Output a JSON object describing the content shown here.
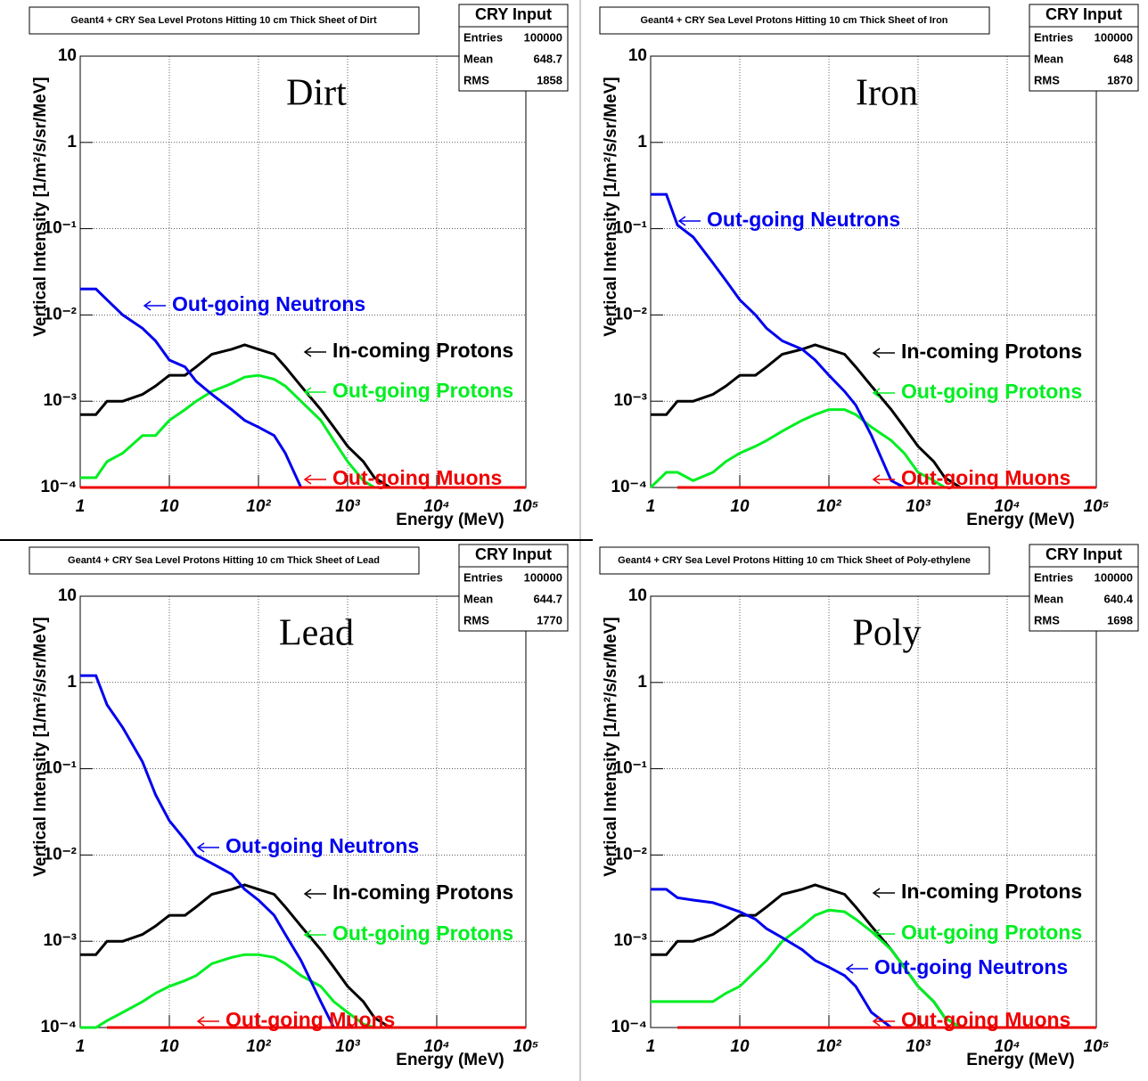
{
  "chart_data": [
    {
      "type": "line",
      "title": "Geant4 + CRY Sea Level Protons Hitting 10 cm Thick Sheet of Dirt",
      "annotation": "Dirt",
      "xlabel": "Energy (MeV)",
      "ylabel": "Vertical Intensity [1/m²/s/sr/MeV]",
      "log_x": true,
      "log_y": true,
      "grid": true,
      "stats": {
        "title": "CRY Input",
        "rows": [
          {
            "label": "Entries",
            "value": 100000
          },
          {
            "label": "Mean",
            "value": 648.7
          },
          {
            "label": "RMS",
            "value": 1858
          }
        ]
      },
      "xlim": [
        1,
        100000
      ],
      "ylim": [
        0.0001,
        10
      ],
      "xticks": [
        1,
        10,
        {
          "value": 100,
          "label": "10²"
        },
        {
          "value": 1000,
          "label": "10³"
        },
        {
          "value": 10000,
          "label": "10⁴"
        },
        {
          "value": 100000,
          "label": "10⁵"
        }
      ],
      "yticks": [
        {
          "value": 0.0001,
          "label": "10⁻⁴"
        },
        {
          "value": 0.001,
          "label": "10⁻³"
        },
        {
          "value": 0.01,
          "label": "10⁻²"
        },
        {
          "value": 0.1,
          "label": "10⁻¹"
        },
        1,
        10
      ],
      "x": [
        1,
        1.5,
        2,
        3,
        5,
        7,
        10,
        15,
        20,
        30,
        50,
        70,
        100,
        150,
        200,
        300,
        500,
        700,
        1000,
        1500,
        2000,
        3000,
        100000
      ],
      "series": [
        {
          "name": "In-coming Protons",
          "color": "#000000",
          "values": [
            0.0007,
            0.0007,
            0.001,
            0.001,
            0.0012,
            0.0015,
            0.002,
            0.002,
            0.0025,
            0.0035,
            0.004,
            0.0045,
            0.004,
            0.0035,
            0.0025,
            0.0015,
            0.0008,
            0.0005,
            0.0003,
            0.0002,
            0.00013,
            0.0001,
            0.0001
          ]
        },
        {
          "name": "Out-going Protons",
          "color": "#00ee22",
          "values": [
            0.00013,
            0.00013,
            0.0002,
            0.00025,
            0.0004,
            0.0004,
            0.0006,
            0.0008,
            0.001,
            0.0013,
            0.0016,
            0.0019,
            0.002,
            0.0018,
            0.0015,
            0.001,
            0.0006,
            0.00035,
            0.0002,
            0.00012,
            0.0001,
            0.0001,
            0.0001
          ]
        },
        {
          "name": "Out-going Neutrons",
          "color": "#0000ee",
          "values": [
            0.02,
            0.02,
            0.015,
            0.01,
            0.007,
            0.005,
            0.003,
            0.0025,
            0.0017,
            0.0012,
            0.0008,
            0.0006,
            0.0005,
            0.0004,
            0.00025,
            0.0001,
            0.0001,
            0.0001,
            0.0001,
            0.0001,
            0.0001,
            0.0001,
            0.0001
          ]
        },
        {
          "name": "Out-going Muons",
          "color": "#ee0000",
          "values": [
            0.0001,
            0.0001,
            0.0001,
            0.0001,
            0.0001,
            0.0001,
            0.0001,
            0.0001,
            0.0001,
            0.0001,
            0.0001,
            0.0001,
            0.0001,
            0.0001,
            0.0001,
            0.0001,
            0.0001,
            0.0001,
            0.0001,
            0.0001,
            0.0001,
            0.0001,
            0.0001
          ]
        }
      ]
    },
    {
      "type": "line",
      "title": "Geant4 + CRY Sea Level Protons Hitting 10 cm Thick Sheet of Iron",
      "annotation": "Iron",
      "xlabel": "Energy (MeV)",
      "ylabel": "Vertical Intensity [1/m²/s/sr/MeV]",
      "log_x": true,
      "log_y": true,
      "grid": true,
      "stats": {
        "title": "CRY Input",
        "rows": [
          {
            "label": "Entries",
            "value": 100000
          },
          {
            "label": "Mean",
            "value": 648
          },
          {
            "label": "RMS",
            "value": 1870
          }
        ]
      },
      "xlim": [
        1,
        100000
      ],
      "ylim": [
        0.0001,
        10
      ],
      "xticks": [
        1,
        10,
        {
          "value": 100,
          "label": "10²"
        },
        {
          "value": 1000,
          "label": "10³"
        },
        {
          "value": 10000,
          "label": "10⁴"
        },
        {
          "value": 100000,
          "label": "10⁵"
        }
      ],
      "yticks": [
        {
          "value": 0.0001,
          "label": "10⁻⁴"
        },
        {
          "value": 0.001,
          "label": "10⁻³"
        },
        {
          "value": 0.01,
          "label": "10⁻²"
        },
        {
          "value": 0.1,
          "label": "10⁻¹"
        },
        1,
        10
      ],
      "x": [
        1,
        1.5,
        2,
        3,
        5,
        7,
        10,
        15,
        20,
        30,
        50,
        70,
        100,
        150,
        200,
        300,
        500,
        700,
        1000,
        1500,
        2000,
        3000,
        100000
      ],
      "series": [
        {
          "name": "In-coming Protons",
          "color": "#000000",
          "values": [
            0.0007,
            0.0007,
            0.001,
            0.001,
            0.0012,
            0.0015,
            0.002,
            0.002,
            0.0025,
            0.0035,
            0.004,
            0.0045,
            0.004,
            0.0035,
            0.0025,
            0.0015,
            0.0008,
            0.0005,
            0.0003,
            0.0002,
            0.00013,
            0.0001,
            0.0001
          ]
        },
        {
          "name": "Out-going Protons",
          "color": "#00ee22",
          "values": [
            0.0001,
            0.00015,
            0.00015,
            0.00012,
            0.00015,
            0.0002,
            0.00025,
            0.0003,
            0.00035,
            0.00045,
            0.0006,
            0.0007,
            0.0008,
            0.0008,
            0.0007,
            0.0005,
            0.00035,
            0.00025,
            0.00015,
            0.00012,
            0.0001,
            0.0001,
            0.0001
          ]
        },
        {
          "name": "Out-going Neutrons",
          "color": "#0000ee",
          "values": [
            0.25,
            0.25,
            0.11,
            0.08,
            0.04,
            0.025,
            0.015,
            0.01,
            0.007,
            0.005,
            0.004,
            0.003,
            0.002,
            0.0013,
            0.0009,
            0.0004,
            0.00012,
            0.0001,
            0.0001,
            0.0001,
            0.0001,
            0.0001,
            0.0001
          ]
        },
        {
          "name": "Out-going Muons",
          "color": "#ee0000",
          "values": [
            null,
            null,
            0.0001,
            0.0001,
            0.0001,
            0.0001,
            0.0001,
            0.0001,
            0.0001,
            0.0001,
            0.0001,
            0.0001,
            0.0001,
            0.0001,
            0.0001,
            0.0001,
            0.0001,
            0.0001,
            0.0001,
            0.0001,
            0.0001,
            0.0001,
            0.0001
          ]
        }
      ]
    },
    {
      "type": "line",
      "title": "Geant4 + CRY Sea Level Protons Hitting 10 cm Thick Sheet of Lead",
      "annotation": "Lead",
      "xlabel": "Energy (MeV)",
      "ylabel": "Vertical Intensity [1/m²/s/sr/MeV]",
      "log_x": true,
      "log_y": true,
      "grid": true,
      "stats": {
        "title": "CRY Input",
        "rows": [
          {
            "label": "Entries",
            "value": 100000
          },
          {
            "label": "Mean",
            "value": 644.7
          },
          {
            "label": "RMS",
            "value": 1770
          }
        ]
      },
      "xlim": [
        1,
        100000
      ],
      "ylim": [
        0.0001,
        10
      ],
      "xticks": [
        1,
        10,
        {
          "value": 100,
          "label": "10²"
        },
        {
          "value": 1000,
          "label": "10³"
        },
        {
          "value": 10000,
          "label": "10⁴"
        },
        {
          "value": 100000,
          "label": "10⁵"
        }
      ],
      "yticks": [
        {
          "value": 0.0001,
          "label": "10⁻⁴"
        },
        {
          "value": 0.001,
          "label": "10⁻³"
        },
        {
          "value": 0.01,
          "label": "10⁻²"
        },
        {
          "value": 0.1,
          "label": "10⁻¹"
        },
        1,
        10
      ],
      "x": [
        1,
        1.5,
        2,
        3,
        5,
        7,
        10,
        15,
        20,
        30,
        50,
        70,
        100,
        150,
        200,
        300,
        500,
        700,
        1000,
        1500,
        2000,
        3000,
        100000
      ],
      "series": [
        {
          "name": "In-coming Protons",
          "color": "#000000",
          "values": [
            0.0007,
            0.0007,
            0.001,
            0.001,
            0.0012,
            0.0015,
            0.002,
            0.002,
            0.0025,
            0.0035,
            0.004,
            0.0045,
            0.004,
            0.0035,
            0.0025,
            0.0015,
            0.0008,
            0.0005,
            0.0003,
            0.0002,
            0.00013,
            0.0001,
            0.0001
          ]
        },
        {
          "name": "Out-going Protons",
          "color": "#00ee22",
          "values": [
            0.0001,
            0.0001,
            0.00012,
            0.00015,
            0.0002,
            0.00025,
            0.0003,
            0.00035,
            0.0004,
            0.00055,
            0.00065,
            0.0007,
            0.0007,
            0.00065,
            0.00055,
            0.0004,
            0.0003,
            0.0002,
            0.00015,
            0.00011,
            0.0001,
            0.0001,
            0.0001
          ]
        },
        {
          "name": "Out-going Neutrons",
          "color": "#0000ee",
          "values": [
            1.2,
            1.2,
            0.55,
            0.3,
            0.12,
            0.05,
            0.025,
            0.015,
            0.01,
            0.008,
            0.006,
            0.004,
            0.003,
            0.002,
            0.0012,
            0.0006,
            0.0002,
            0.0001,
            0.0001,
            0.0001,
            0.0001,
            0.0001,
            0.0001
          ]
        },
        {
          "name": "Out-going Muons",
          "color": "#ee0000",
          "values": [
            null,
            null,
            0.0001,
            0.0001,
            0.0001,
            0.0001,
            0.0001,
            0.0001,
            0.0001,
            0.0001,
            0.0001,
            0.0001,
            0.0001,
            0.0001,
            0.0001,
            0.0001,
            0.0001,
            0.0001,
            0.0001,
            0.0001,
            0.0001,
            0.0001,
            0.0001
          ]
        }
      ]
    },
    {
      "type": "line",
      "title": "Geant4 + CRY Sea Level Protons Hitting 10 cm Thick Sheet of Poly-ethylene",
      "annotation": "Poly",
      "xlabel": "Energy (MeV)",
      "ylabel": "Vertical Intensity [1/m²/s/sr/MeV]",
      "log_x": true,
      "log_y": true,
      "grid": true,
      "stats": {
        "title": "CRY Input",
        "rows": [
          {
            "label": "Entries",
            "value": 100000
          },
          {
            "label": "Mean",
            "value": 640.4
          },
          {
            "label": "RMS",
            "value": 1698
          }
        ]
      },
      "xlim": [
        1,
        100000
      ],
      "ylim": [
        0.0001,
        10
      ],
      "xticks": [
        1,
        10,
        {
          "value": 100,
          "label": "10²"
        },
        {
          "value": 1000,
          "label": "10³"
        },
        {
          "value": 10000,
          "label": "10⁴"
        },
        {
          "value": 100000,
          "label": "10⁵"
        }
      ],
      "yticks": [
        {
          "value": 0.0001,
          "label": "10⁻⁴"
        },
        {
          "value": 0.001,
          "label": "10⁻³"
        },
        {
          "value": 0.01,
          "label": "10⁻²"
        },
        {
          "value": 0.1,
          "label": "10⁻¹"
        },
        1,
        10
      ],
      "x": [
        1,
        1.5,
        2,
        3,
        5,
        7,
        10,
        15,
        20,
        30,
        50,
        70,
        100,
        150,
        200,
        300,
        500,
        700,
        1000,
        1500,
        2000,
        3000,
        100000
      ],
      "series": [
        {
          "name": "In-coming Protons",
          "color": "#000000",
          "values": [
            0.0007,
            0.0007,
            0.001,
            0.001,
            0.0012,
            0.0015,
            0.002,
            0.002,
            0.0025,
            0.0035,
            0.004,
            0.0045,
            0.004,
            0.0035,
            0.0025,
            0.0015,
            0.0008,
            0.0005,
            0.0003,
            0.0002,
            0.00013,
            0.0001,
            0.0001
          ]
        },
        {
          "name": "Out-going Protons",
          "color": "#00ee22",
          "values": [
            0.0002,
            0.0002,
            0.0002,
            0.0002,
            0.0002,
            0.00025,
            0.0003,
            0.00045,
            0.0006,
            0.001,
            0.0015,
            0.002,
            0.0023,
            0.0022,
            0.0018,
            0.0013,
            0.0008,
            0.0005,
            0.0003,
            0.0002,
            0.00013,
            0.0001,
            0.0001
          ]
        },
        {
          "name": "Out-going Neutrons",
          "color": "#0000ee",
          "values": [
            0.004,
            0.004,
            0.0032,
            0.003,
            0.0028,
            0.0025,
            0.0022,
            0.0018,
            0.0014,
            0.0011,
            0.0008,
            0.0006,
            0.0005,
            0.0004,
            0.0003,
            0.00015,
            0.0001,
            0.0001,
            0.0001,
            0.0001,
            0.0001,
            0.0001,
            0.0001
          ]
        },
        {
          "name": "Out-going Muons",
          "color": "#ee0000",
          "values": [
            null,
            null,
            0.0001,
            0.0001,
            0.0001,
            0.0001,
            0.0001,
            0.0001,
            0.0001,
            0.0001,
            0.0001,
            0.0001,
            0.0001,
            0.0001,
            0.0001,
            0.0001,
            0.0001,
            0.0001,
            0.0001,
            0.0001,
            0.0001,
            0.0001,
            0.0001
          ]
        }
      ]
    }
  ]
}
